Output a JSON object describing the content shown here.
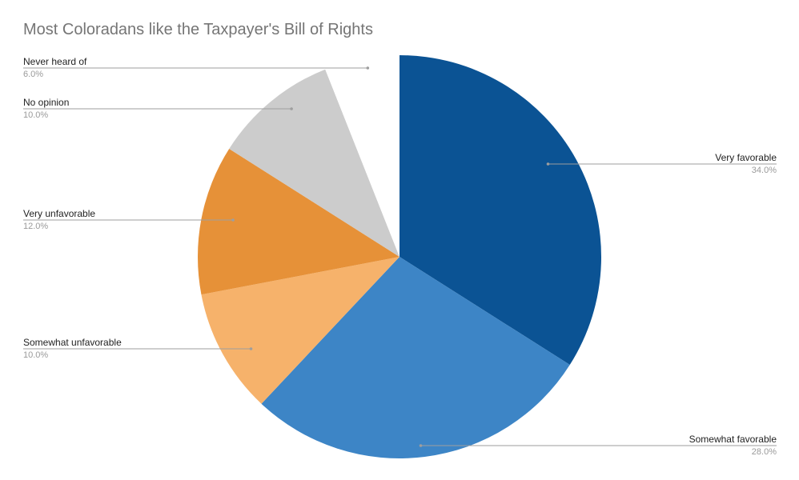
{
  "chart_data": {
    "type": "pie",
    "title": "Most Coloradans like the Taxpayer's Bill of Rights",
    "slices": [
      {
        "label": "Very favorable",
        "value": 34.0,
        "pct_label": "34.0%",
        "color": "#0b5394"
      },
      {
        "label": "Somewhat favorable",
        "value": 28.0,
        "pct_label": "28.0%",
        "color": "#3d85c6"
      },
      {
        "label": "Somewhat unfavorable",
        "value": 10.0,
        "pct_label": "10.0%",
        "color": "#f6b26b"
      },
      {
        "label": "Very unfavorable",
        "value": 12.0,
        "pct_label": "12.0%",
        "color": "#e69138"
      },
      {
        "label": "No opinion",
        "value": 10.0,
        "pct_label": "10.0%",
        "color": "#cccccc"
      },
      {
        "label": "Never heard of",
        "value": 6.0,
        "pct_label": "6.0%",
        "color": "#ffffff"
      }
    ],
    "legend": "none"
  }
}
